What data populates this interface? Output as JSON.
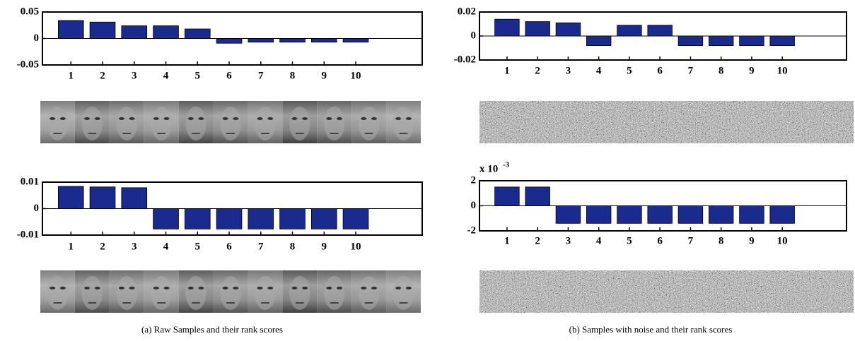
{
  "chart_data": [
    {
      "type": "bar",
      "x": [
        1,
        2,
        3,
        4,
        5,
        6,
        7,
        8,
        9,
        10
      ],
      "values": [
        0.034,
        0.031,
        0.024,
        0.024,
        0.018,
        -0.009,
        -0.007,
        -0.007,
        -0.007,
        -0.007
      ],
      "color": "#1b2a8e",
      "xlim": [
        0,
        12
      ],
      "xticks": [
        1,
        2,
        3,
        4,
        5,
        6,
        7,
        8,
        9,
        10
      ],
      "ylim": [
        -0.05,
        0.05
      ],
      "yticks": [
        0.05,
        0,
        -0.05
      ]
    },
    {
      "type": "bar",
      "x": [
        1,
        2,
        3,
        4,
        5,
        6,
        7,
        8,
        9,
        10
      ],
      "values": [
        0.014,
        0.012,
        0.011,
        -0.008,
        0.009,
        0.009,
        -0.008,
        -0.008,
        -0.008,
        -0.008
      ],
      "color": "#1b2a8e",
      "xlim": [
        0,
        12
      ],
      "xticks": [
        1,
        2,
        3,
        4,
        5,
        6,
        7,
        8,
        9,
        10
      ],
      "ylim": [
        -0.02,
        0.02
      ],
      "yticks": [
        0.02,
        0,
        -0.02
      ]
    },
    {
      "type": "bar",
      "x": [
        1,
        2,
        3,
        4,
        5,
        6,
        7,
        8,
        9,
        10
      ],
      "values": [
        0.0084,
        0.0082,
        0.0079,
        -0.0077,
        -0.0077,
        -0.0077,
        -0.0077,
        -0.0077,
        -0.0077,
        -0.0077
      ],
      "color": "#1b2a8e",
      "xlim": [
        0,
        12
      ],
      "xticks": [
        1,
        2,
        3,
        4,
        5,
        6,
        7,
        8,
        9,
        10
      ],
      "ylim": [
        -0.01,
        0.01
      ],
      "yticks": [
        0.01,
        0,
        -0.01
      ]
    },
    {
      "type": "bar",
      "x": [
        1,
        2,
        3,
        4,
        5,
        6,
        7,
        8,
        9,
        10
      ],
      "values": [
        1.5,
        1.5,
        -1.4,
        -1.4,
        -1.4,
        -1.4,
        -1.4,
        -1.4,
        -1.4,
        -1.4
      ],
      "color": "#1b2a8e",
      "xlim": [
        0,
        12
      ],
      "xticks": [
        1,
        2,
        3,
        4,
        5,
        6,
        7,
        8,
        9,
        10
      ],
      "ylim": [
        -2,
        2
      ],
      "yticks": [
        2,
        0,
        -2
      ],
      "axis_multiplier": {
        "base": "x 10",
        "exponent": "-3"
      }
    }
  ],
  "captions": [
    "(a) Raw Samples and their rank scores",
    "(b) Samples with noise and their rank scores"
  ]
}
